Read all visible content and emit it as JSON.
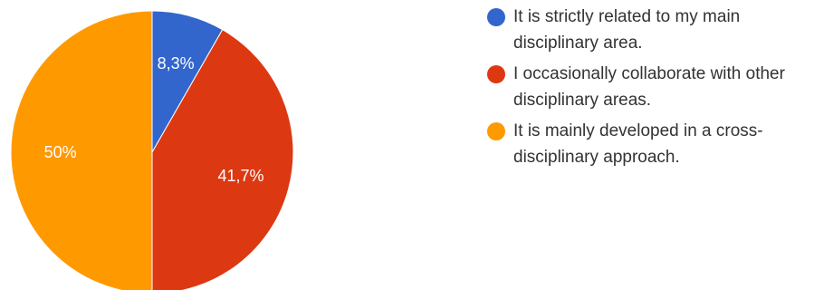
{
  "chart_data": {
    "type": "pie",
    "start": "top",
    "direction": "clockwise",
    "slices": [
      {
        "label": "It is strictly related to my main disciplinary area.",
        "value": 8.3,
        "display": "8,3%",
        "color": "#3366cc"
      },
      {
        "label": "I occasionally collaborate with other disciplinary areas.",
        "value": 41.7,
        "display": "41,7%",
        "color": "#dc3912"
      },
      {
        "label": "It is mainly developed in a cross-disciplinary approach.",
        "value": 50,
        "display": "50%",
        "color": "#ff9900"
      }
    ],
    "legend": "right"
  }
}
